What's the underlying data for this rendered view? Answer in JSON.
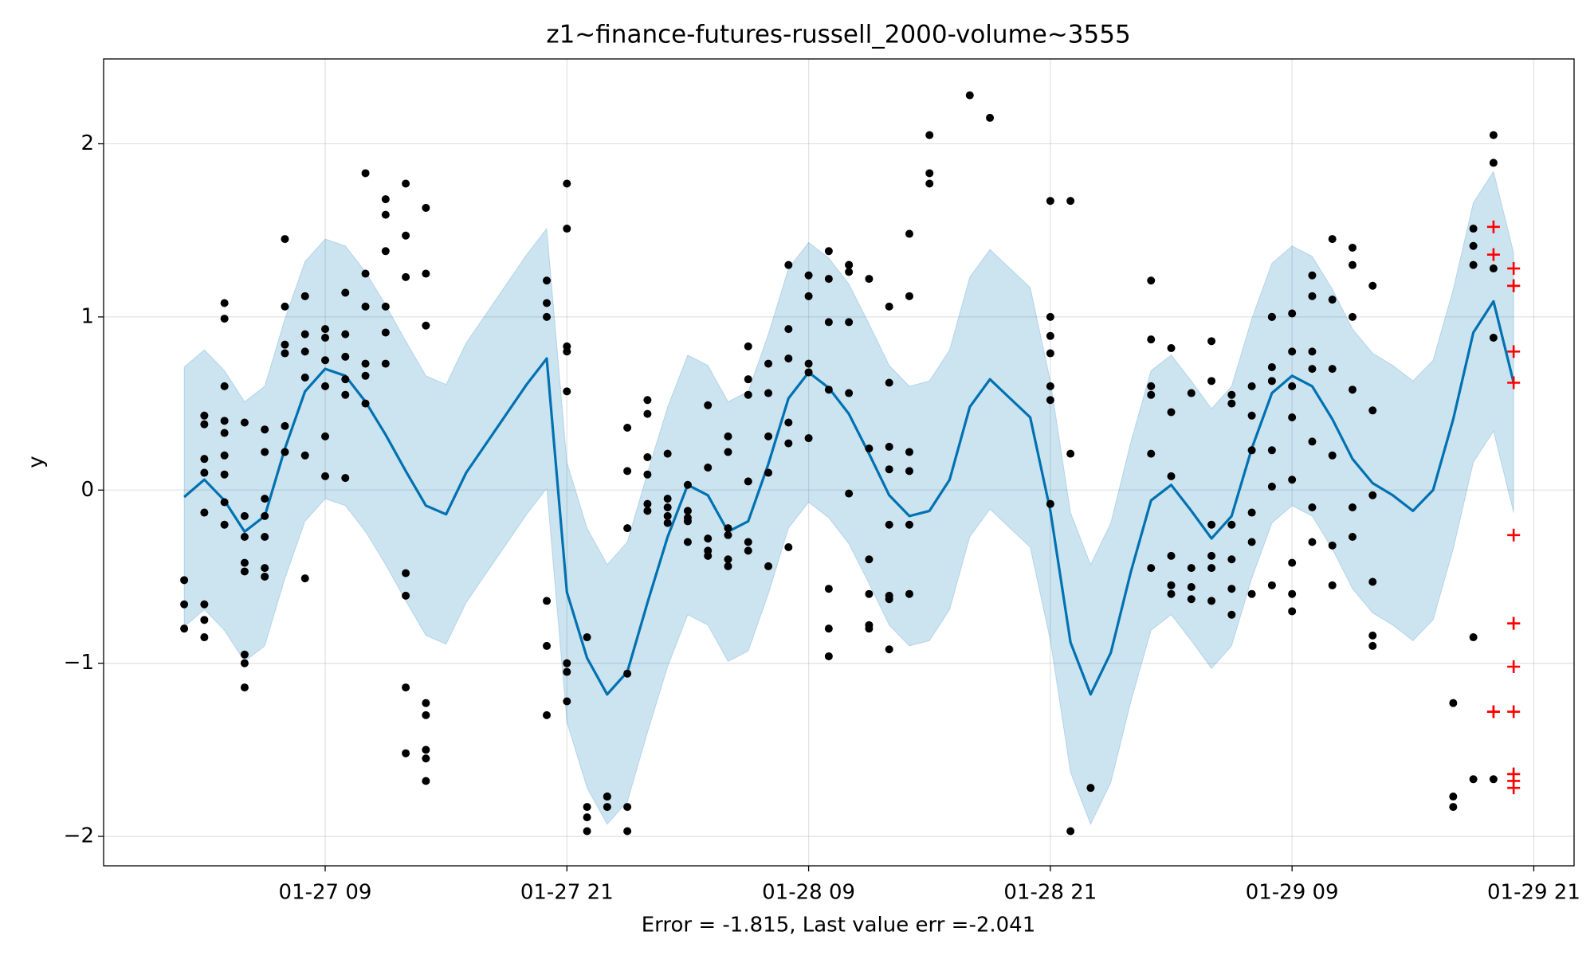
{
  "chart_data": {
    "type": "line",
    "title": "z1~finance-futures-russell_2000-volume~3555",
    "x_label": "Error = -1.815, Last value err =-2.041",
    "y_label": "y",
    "xlim": [
      "01-26 22",
      "01-29 23"
    ],
    "xticks": [
      "01-27 09",
      "01-27 21",
      "01-28 09",
      "01-28 21",
      "01-29 09",
      "01-29 21"
    ],
    "ylim": [
      -2.17,
      2.49
    ],
    "yticks": [
      {
        "value": -2,
        "label": "−2"
      },
      {
        "value": -1,
        "label": "−1"
      },
      0,
      1,
      2
    ],
    "grid": true,
    "series": [
      {
        "type": "forecast",
        "color": "#0072b2",
        "band_color": "#0072b2",
        "x": [
          "01-27 02",
          "01-27 03",
          "01-27 04",
          "01-27 05",
          "01-27 06",
          "01-27 07",
          "01-27 08",
          "01-27 09",
          "01-27 10",
          "01-27 11",
          "01-27 12",
          "01-27 13",
          "01-27 14",
          "01-27 15",
          "01-27 16",
          "01-27 17",
          "01-27 18",
          "01-27 19",
          "01-27 20",
          "01-27 21",
          "01-27 22",
          "01-27 23",
          "01-28 00",
          "01-28 01",
          "01-28 02",
          "01-28 03",
          "01-28 04",
          "01-28 05",
          "01-28 06",
          "01-28 07",
          "01-28 08",
          "01-28 09",
          "01-28 10",
          "01-28 11",
          "01-28 12",
          "01-28 13",
          "01-28 14",
          "01-28 15",
          "01-28 16",
          "01-28 17",
          "01-28 18",
          "01-28 19",
          "01-28 20",
          "01-28 21",
          "01-28 22",
          "01-28 23",
          "01-29 00",
          "01-29 01",
          "01-29 02",
          "01-29 03",
          "01-29 04",
          "01-29 05",
          "01-29 06",
          "01-29 07",
          "01-29 08",
          "01-29 09",
          "01-29 10",
          "01-29 11",
          "01-29 12",
          "01-29 13",
          "01-29 14",
          "01-29 15",
          "01-29 16",
          "01-29 17",
          "01-29 18",
          "01-29 19",
          "01-29 20"
        ],
        "values": [
          -0.04,
          0.06,
          -0.06,
          -0.24,
          -0.15,
          0.24,
          0.57,
          0.7,
          0.66,
          0.51,
          0.32,
          0.11,
          -0.09,
          -0.14,
          0.1,
          0.27,
          0.44,
          0.61,
          0.76,
          -0.59,
          -0.97,
          -1.18,
          -1.05,
          -0.65,
          -0.27,
          0.03,
          -0.03,
          -0.24,
          -0.18,
          0.15,
          0.53,
          0.68,
          0.59,
          0.44,
          0.21,
          -0.03,
          -0.15,
          -0.12,
          0.06,
          0.48,
          0.64,
          0.53,
          0.42,
          -0.12,
          -0.88,
          -1.18,
          -0.94,
          -0.47,
          -0.06,
          0.03,
          -0.12,
          -0.28,
          -0.15,
          0.24,
          0.56,
          0.66,
          0.6,
          0.41,
          0.18,
          0.04,
          -0.03,
          -0.12,
          0.0,
          0.41,
          0.91,
          1.09,
          0.62
        ],
        "upper": [
          0.71,
          0.81,
          0.69,
          0.51,
          0.6,
          0.99,
          1.32,
          1.45,
          1.41,
          1.26,
          1.07,
          0.86,
          0.66,
          0.61,
          0.85,
          1.02,
          1.19,
          1.36,
          1.51,
          0.16,
          -0.22,
          -0.43,
          -0.3,
          0.1,
          0.48,
          0.78,
          0.72,
          0.51,
          0.57,
          0.9,
          1.28,
          1.43,
          1.34,
          1.19,
          0.96,
          0.72,
          0.6,
          0.63,
          0.81,
          1.23,
          1.39,
          1.28,
          1.17,
          0.63,
          -0.13,
          -0.43,
          -0.19,
          0.28,
          0.69,
          0.78,
          0.63,
          0.47,
          0.6,
          0.99,
          1.31,
          1.41,
          1.35,
          1.16,
          0.93,
          0.79,
          0.72,
          0.63,
          0.75,
          1.16,
          1.66,
          1.84,
          1.37
        ],
        "lower": [
          -0.79,
          -0.69,
          -0.81,
          -0.99,
          -0.9,
          -0.51,
          -0.18,
          -0.05,
          -0.09,
          -0.24,
          -0.43,
          -0.64,
          -0.84,
          -0.89,
          -0.65,
          -0.48,
          -0.31,
          -0.14,
          0.01,
          -1.34,
          -1.72,
          -1.93,
          -1.8,
          -1.4,
          -1.02,
          -0.72,
          -0.78,
          -0.99,
          -0.93,
          -0.6,
          -0.22,
          -0.07,
          -0.16,
          -0.31,
          -0.54,
          -0.78,
          -0.9,
          -0.87,
          -0.69,
          -0.27,
          -0.11,
          -0.22,
          -0.33,
          -0.87,
          -1.63,
          -1.93,
          -1.69,
          -1.22,
          -0.81,
          -0.72,
          -0.87,
          -1.03,
          -0.9,
          -0.51,
          -0.19,
          -0.09,
          -0.15,
          -0.34,
          -0.57,
          -0.71,
          -0.78,
          -0.87,
          -0.75,
          -0.34,
          0.16,
          0.34,
          -0.13
        ]
      },
      {
        "type": "scatter",
        "marker": "dot",
        "color": "#000000",
        "x": [
          "01-27 02",
          "01-27 02",
          "01-27 02",
          "01-27 03",
          "01-27 03",
          "01-27 03",
          "01-27 03",
          "01-27 03",
          "01-27 03",
          "01-27 03",
          "01-27 03",
          "01-27 04",
          "01-27 04",
          "01-27 04",
          "01-27 04",
          "01-27 04",
          "01-27 04",
          "01-27 04",
          "01-27 04",
          "01-27 04",
          "01-27 05",
          "01-27 05",
          "01-27 05",
          "01-27 05",
          "01-27 05",
          "01-27 05",
          "01-27 05",
          "01-27 05",
          "01-27 06",
          "01-27 06",
          "01-27 06",
          "01-27 06",
          "01-27 06",
          "01-27 06",
          "01-27 06",
          "01-27 07",
          "01-27 07",
          "01-27 07",
          "01-27 07",
          "01-27 07",
          "01-27 07",
          "01-27 08",
          "01-27 08",
          "01-27 08",
          "01-27 08",
          "01-27 08",
          "01-27 08",
          "01-27 09",
          "01-27 09",
          "01-27 09",
          "01-27 09",
          "01-27 09",
          "01-27 09",
          "01-27 10",
          "01-27 10",
          "01-27 10",
          "01-27 10",
          "01-27 10",
          "01-27 10",
          "01-27 11",
          "01-27 11",
          "01-27 11",
          "01-27 11",
          "01-27 11",
          "01-27 11",
          "01-27 12",
          "01-27 12",
          "01-27 12",
          "01-27 12",
          "01-27 12",
          "01-27 12",
          "01-27 13",
          "01-27 13",
          "01-27 13",
          "01-27 13",
          "01-27 13",
          "01-27 13",
          "01-27 13",
          "01-27 14",
          "01-27 14",
          "01-27 14",
          "01-27 14",
          "01-27 14",
          "01-27 14",
          "01-27 14",
          "01-27 14",
          "01-27 20",
          "01-27 20",
          "01-27 20",
          "01-27 20",
          "01-27 20",
          "01-27 20",
          "01-27 21",
          "01-27 21",
          "01-27 21",
          "01-27 21",
          "01-27 21",
          "01-27 21",
          "01-27 21",
          "01-27 21",
          "01-27 22",
          "01-27 22",
          "01-27 22",
          "01-27 22",
          "01-27 23",
          "01-27 23",
          "01-27 23",
          "01-28 00",
          "01-28 00",
          "01-28 00",
          "01-28 00",
          "01-28 00",
          "01-28 00",
          "01-28 01",
          "01-28 01",
          "01-28 01",
          "01-28 01",
          "01-28 01",
          "01-28 01",
          "01-28 02",
          "01-28 02",
          "01-28 02",
          "01-28 02",
          "01-28 02",
          "01-28 03",
          "01-28 03",
          "01-28 03",
          "01-28 03",
          "01-28 03",
          "01-28 04",
          "01-28 04",
          "01-28 04",
          "01-28 04",
          "01-28 04",
          "01-28 05",
          "01-28 05",
          "01-28 05",
          "01-28 05",
          "01-28 05",
          "01-28 05",
          "01-28 06",
          "01-28 06",
          "01-28 06",
          "01-28 06",
          "01-28 06",
          "01-28 06",
          "01-28 07",
          "01-28 07",
          "01-28 07",
          "01-28 07",
          "01-28 07",
          "01-28 08",
          "01-28 08",
          "01-28 08",
          "01-28 08",
          "01-28 08",
          "01-28 08",
          "01-28 09",
          "01-28 09",
          "01-28 09",
          "01-28 09",
          "01-28 09",
          "01-28 10",
          "01-28 10",
          "01-28 10",
          "01-28 10",
          "01-28 10",
          "01-28 10",
          "01-28 10",
          "01-28 11",
          "01-28 11",
          "01-28 11",
          "01-28 11",
          "01-28 11",
          "01-28 11",
          "01-28 12",
          "01-28 12",
          "01-28 12",
          "01-28 12",
          "01-28 12",
          "01-28 12",
          "01-28 13",
          "01-28 13",
          "01-28 13",
          "01-28 13",
          "01-28 13",
          "01-28 13",
          "01-28 13",
          "01-28 13",
          "01-28 14",
          "01-28 14",
          "01-28 14",
          "01-28 14",
          "01-28 14",
          "01-28 14",
          "01-28 15",
          "01-28 15",
          "01-28 15",
          "01-28 17",
          "01-28 18",
          "01-28 21",
          "01-28 21",
          "01-28 21",
          "01-28 21",
          "01-28 21",
          "01-28 21",
          "01-28 21",
          "01-28 22",
          "01-28 22",
          "01-28 22",
          "01-28 23",
          "01-29 02",
          "01-29 02",
          "01-29 02",
          "01-29 02",
          "01-29 02",
          "01-29 02",
          "01-29 03",
          "01-29 03",
          "01-29 03",
          "01-29 03",
          "01-29 03",
          "01-29 03",
          "01-29 04",
          "01-29 04",
          "01-29 04",
          "01-29 04",
          "01-29 05",
          "01-29 05",
          "01-29 05",
          "01-29 05",
          "01-29 05",
          "01-29 05",
          "01-29 06",
          "01-29 06",
          "01-29 06",
          "01-29 06",
          "01-29 06",
          "01-29 06",
          "01-29 07",
          "01-29 07",
          "01-29 07",
          "01-29 07",
          "01-29 07",
          "01-29 07",
          "01-29 08",
          "01-29 08",
          "01-29 08",
          "01-29 08",
          "01-29 08",
          "01-29 08",
          "01-29 08",
          "01-29 09",
          "01-29 09",
          "01-29 09",
          "01-29 09",
          "01-29 09",
          "01-29 09",
          "01-29 09",
          "01-29 09",
          "01-29 10",
          "01-29 10",
          "01-29 10",
          "01-29 10",
          "01-29 10",
          "01-29 10",
          "01-29 10",
          "01-29 11",
          "01-29 11",
          "01-29 11",
          "01-29 11",
          "01-29 11",
          "01-29 11",
          "01-29 12",
          "01-29 12",
          "01-29 12",
          "01-29 12",
          "01-29 12",
          "01-29 12",
          "01-29 13",
          "01-29 13",
          "01-29 13",
          "01-29 13",
          "01-29 13",
          "01-29 13",
          "01-29 17",
          "01-29 17",
          "01-29 17",
          "01-29 18",
          "01-29 18",
          "01-29 18",
          "01-29 18",
          "01-29 18",
          "01-29 19",
          "01-29 19",
          "01-29 19",
          "01-29 19",
          "01-29 19"
        ],
        "values": [
          -0.52,
          -0.8,
          -0.66,
          -0.75,
          -0.85,
          -0.66,
          -0.13,
          0.1,
          0.18,
          0.38,
          0.43,
          0.4,
          0.2,
          -0.07,
          -0.2,
          0.09,
          0.33,
          0.6,
          1.08,
          0.99,
          -0.95,
          -1.0,
          -1.14,
          -0.42,
          -0.47,
          -0.27,
          -0.15,
          0.39,
          -0.45,
          -0.5,
          -0.27,
          -0.15,
          -0.05,
          0.22,
          0.35,
          0.37,
          0.84,
          1.06,
          1.45,
          0.79,
          0.22,
          0.9,
          0.8,
          0.65,
          1.12,
          0.2,
          -0.51,
          0.93,
          0.88,
          0.75,
          0.31,
          0.08,
          0.6,
          0.9,
          0.55,
          0.77,
          1.14,
          0.07,
          0.64,
          1.25,
          1.06,
          1.83,
          0.5,
          0.66,
          0.73,
          1.68,
          1.38,
          1.06,
          0.91,
          1.59,
          0.73,
          1.77,
          1.47,
          1.23,
          -0.48,
          -0.61,
          -1.52,
          -1.14,
          1.63,
          0.95,
          1.25,
          -1.5,
          -1.23,
          -1.3,
          -1.68,
          -1.55,
          1.21,
          1.08,
          1.0,
          -0.9,
          -0.64,
          -1.3,
          1.77,
          1.51,
          0.8,
          0.57,
          0.83,
          -1.0,
          -1.05,
          -1.22,
          -0.85,
          -1.89,
          -1.83,
          -1.97,
          -1.77,
          -1.83,
          -1.77,
          -1.97,
          -1.83,
          -1.06,
          -0.22,
          0.36,
          0.11,
          0.44,
          0.52,
          0.09,
          -0.08,
          0.19,
          -0.12,
          0.21,
          -0.05,
          -0.1,
          -0.15,
          -0.19,
          0.03,
          -0.18,
          -0.3,
          -0.16,
          -0.12,
          0.49,
          0.13,
          -0.28,
          -0.35,
          -0.38,
          -0.26,
          -0.4,
          -0.44,
          0.31,
          0.22,
          -0.22,
          0.83,
          0.64,
          0.55,
          0.05,
          -0.3,
          -0.35,
          0.56,
          0.31,
          0.73,
          -0.44,
          0.1,
          1.3,
          0.93,
          0.76,
          0.39,
          0.27,
          -0.33,
          1.24,
          1.12,
          0.68,
          0.73,
          0.3,
          1.38,
          1.22,
          0.97,
          0.58,
          -0.57,
          -0.8,
          -0.96,
          1.3,
          1.3,
          1.26,
          0.97,
          0.56,
          -0.02,
          1.22,
          -0.6,
          -0.8,
          -0.78,
          -0.4,
          0.24,
          1.06,
          0.62,
          0.25,
          -0.2,
          -0.63,
          -0.92,
          -0.61,
          0.12,
          1.48,
          1.12,
          0.22,
          -0.6,
          -0.2,
          0.11,
          2.05,
          1.83,
          1.77,
          2.28,
          2.15,
          1.0,
          0.89,
          0.79,
          0.6,
          0.52,
          1.67,
          -0.08,
          1.67,
          0.21,
          -1.97,
          -1.72,
          1.21,
          0.87,
          0.6,
          0.55,
          0.21,
          -0.45,
          0.82,
          0.45,
          0.08,
          -0.55,
          -0.6,
          -0.38,
          0.56,
          -0.45,
          -0.56,
          -0.63,
          0.86,
          0.63,
          -0.2,
          -0.38,
          -0.45,
          -0.64,
          0.55,
          0.5,
          -0.2,
          -0.4,
          -0.57,
          -0.72,
          0.6,
          0.23,
          0.43,
          -0.13,
          -0.3,
          -0.6,
          1.0,
          1.0,
          0.71,
          0.63,
          0.23,
          0.02,
          -0.55,
          1.02,
          0.8,
          0.6,
          0.42,
          0.06,
          -0.42,
          -0.6,
          -0.7,
          1.24,
          1.12,
          0.8,
          0.7,
          0.28,
          -0.3,
          -0.1,
          1.45,
          1.1,
          0.7,
          0.2,
          -0.32,
          -0.55,
          1.4,
          1.3,
          1.0,
          0.58,
          -0.27,
          -0.1,
          1.18,
          0.46,
          -0.03,
          -0.53,
          -0.84,
          -0.9,
          -1.23,
          -1.77,
          -1.83,
          1.3,
          1.41,
          1.51,
          -0.85,
          -1.67,
          2.05,
          1.89,
          1.28,
          0.88,
          -1.67
        ]
      },
      {
        "type": "scatter",
        "marker": "plus",
        "color": "#ff0000",
        "x": [
          "01-29 19",
          "01-29 19",
          "01-29 19",
          "01-29 19",
          "01-29 20",
          "01-29 20",
          "01-29 20",
          "01-29 20",
          "01-29 20",
          "01-29 20",
          "01-29 20",
          "01-29 20",
          "01-29 20",
          "01-29 20",
          "01-29 20",
          "01-29 20",
          "01-29 20",
          "01-29 20"
        ],
        "values": [
          1.52,
          1.36,
          -1.28,
          -1.28,
          1.28,
          1.18,
          0.62,
          -0.26,
          -0.77,
          -0.77,
          -1.02,
          -1.28,
          -1.64,
          -1.64,
          -1.68,
          -1.72,
          1.18,
          0.8
        ]
      }
    ]
  }
}
